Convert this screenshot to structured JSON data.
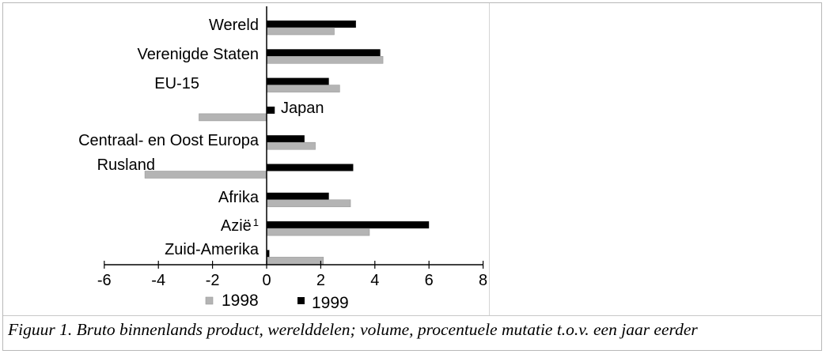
{
  "caption": "Figuur 1. Bruto binnenlands product, werelddelen; volume, procentuele mutatie t.o.v. een jaar eerder",
  "chart_data": {
    "type": "bar",
    "orientation": "horizontal",
    "categories": [
      "Wereld",
      "Verenigde Staten",
      "EU-15",
      "Japan",
      "Centraal- en Oost Europa",
      "Rusland",
      "Afrika",
      "Azië",
      "Zuid-Amerika"
    ],
    "category_superscripts": [
      "",
      "",
      "",
      "",
      "",
      "",
      "",
      "1",
      ""
    ],
    "series": [
      {
        "name": "1998",
        "color": "#b4b4b4",
        "values": [
          2.5,
          4.3,
          2.7,
          -2.5,
          1.8,
          -4.5,
          3.1,
          3.8,
          2.1
        ]
      },
      {
        "name": "1999",
        "color": "#000000",
        "values": [
          3.3,
          4.2,
          2.3,
          0.3,
          1.4,
          3.2,
          2.3,
          6.0,
          0.1
        ]
      }
    ],
    "x_ticks": [
      "-6",
      "-4",
      "-2",
      "0",
      "2",
      "4",
      "6",
      "8"
    ],
    "xlim": [
      -6,
      8
    ],
    "grid": false,
    "legend_position": "bottom"
  }
}
